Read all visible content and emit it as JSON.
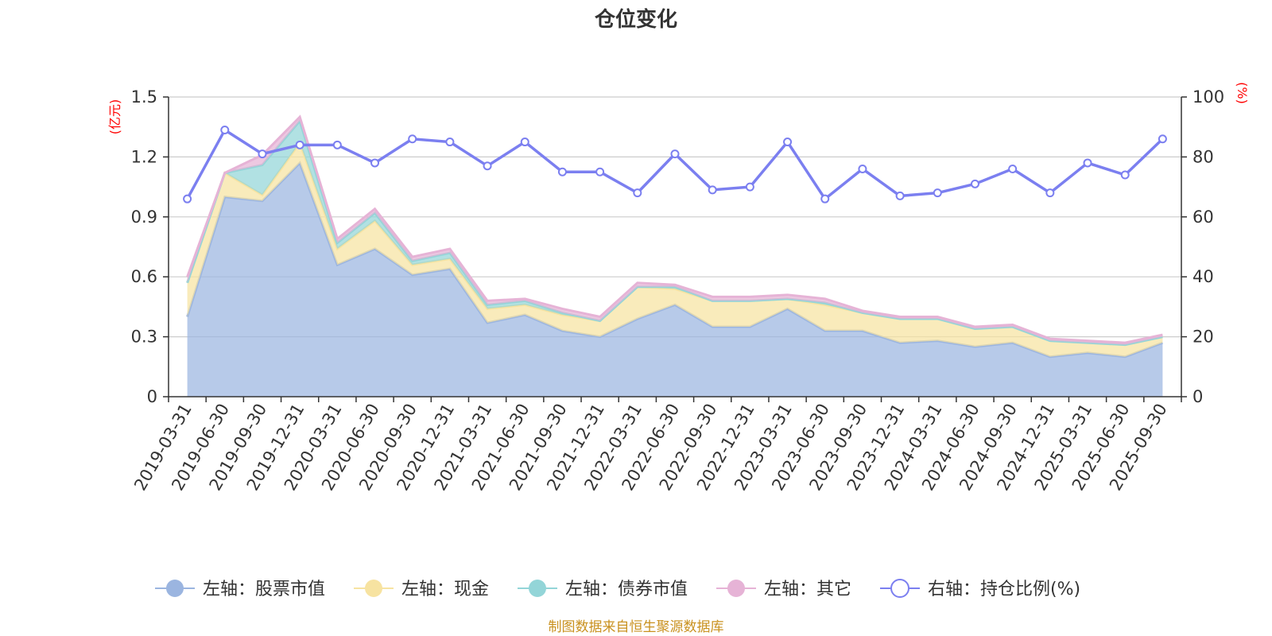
{
  "chart_data": {
    "type": "area",
    "title": "仓位变化",
    "left_unit": "(亿元)",
    "right_unit": "(%)",
    "source": "制图数据来自恒生聚源数据库",
    "categories": [
      "2019-03-31",
      "2019-06-30",
      "2019-09-30",
      "2019-12-31",
      "2020-03-31",
      "2020-06-30",
      "2020-09-30",
      "2020-12-31",
      "2021-03-31",
      "2021-06-30",
      "2021-09-30",
      "2021-12-31",
      "2022-03-31",
      "2022-06-30",
      "2022-09-30",
      "2022-12-31",
      "2023-03-31",
      "2023-06-30",
      "2023-09-30",
      "2023-12-31",
      "2024-03-31",
      "2024-06-30",
      "2024-09-30",
      "2024-12-31",
      "2025-03-31",
      "2025-06-30",
      "2025-09-30"
    ],
    "left_axis": {
      "min": 0,
      "max": 1.5,
      "ticks": [
        "0",
        "0.3",
        "0.6",
        "0.9",
        "1.2",
        "1.5"
      ],
      "tick_values": [
        0,
        0.3,
        0.6,
        0.9,
        1.2,
        1.5
      ]
    },
    "right_axis": {
      "min": 0,
      "max": 100,
      "ticks": [
        "0",
        "20",
        "40",
        "60",
        "80",
        "100"
      ],
      "tick_values": [
        0,
        20,
        40,
        60,
        80,
        100
      ]
    },
    "grid": true,
    "legend_position": "bottom",
    "series": [
      {
        "name": "左轴：股票市值",
        "axis": "left",
        "kind": "stacked-area",
        "color": "#9bb5e0",
        "values": [
          0.4,
          1.0,
          0.98,
          1.17,
          0.66,
          0.74,
          0.61,
          0.64,
          0.37,
          0.41,
          0.33,
          0.3,
          0.39,
          0.46,
          0.35,
          0.35,
          0.44,
          0.33,
          0.33,
          0.27,
          0.28,
          0.25,
          0.27,
          0.2,
          0.22,
          0.2,
          0.27
        ]
      },
      {
        "name": "左轴：现金",
        "axis": "left",
        "kind": "stacked-area",
        "color": "#f7e3a1",
        "values": [
          0.17,
          0.12,
          0.03,
          0.1,
          0.08,
          0.14,
          0.05,
          0.05,
          0.07,
          0.05,
          0.08,
          0.08,
          0.16,
          0.08,
          0.13,
          0.13,
          0.05,
          0.13,
          0.09,
          0.12,
          0.11,
          0.09,
          0.08,
          0.08,
          0.05,
          0.06,
          0.03
        ]
      },
      {
        "name": "左轴：债券市值",
        "axis": "left",
        "kind": "stacked-area",
        "color": "#93d5d8",
        "values": [
          0.0,
          0.0,
          0.15,
          0.11,
          0.03,
          0.04,
          0.02,
          0.03,
          0.02,
          0.02,
          0.01,
          0.0,
          0.0,
          0.01,
          0.0,
          0.0,
          0.0,
          0.01,
          0.0,
          0.0,
          0.0,
          0.0,
          0.0,
          0.0,
          0.0,
          0.0,
          0.0
        ]
      },
      {
        "name": "左轴：其它",
        "axis": "left",
        "kind": "stacked-area",
        "color": "#e6b3d6",
        "values": [
          0.03,
          0.0,
          0.05,
          0.02,
          0.02,
          0.02,
          0.02,
          0.02,
          0.02,
          0.01,
          0.02,
          0.02,
          0.02,
          0.01,
          0.02,
          0.02,
          0.02,
          0.02,
          0.01,
          0.01,
          0.01,
          0.01,
          0.01,
          0.01,
          0.01,
          0.01,
          0.01
        ]
      },
      {
        "name": "右轴：持仓比例(%)",
        "axis": "right",
        "kind": "line",
        "color": "#7b7ff0",
        "values": [
          66,
          89,
          81,
          84,
          84,
          78,
          86,
          85,
          77,
          85,
          75,
          75,
          68,
          81,
          69,
          70,
          85,
          66,
          76,
          67,
          68,
          71,
          76,
          68,
          78,
          74,
          86
        ]
      }
    ]
  }
}
